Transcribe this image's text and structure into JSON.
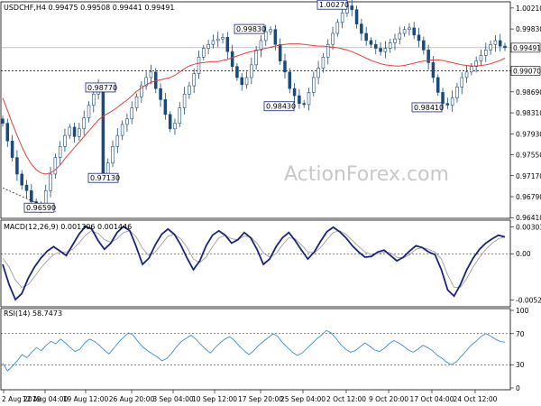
{
  "chart_data": {
    "type": "candlestick",
    "colors": {
      "candle": "#1a4a7a",
      "ma": "#e8403a",
      "macd": "#1a237e",
      "signal": "#a0a0a0",
      "rsi": "#3a8ddd",
      "level_box": "#1a237e"
    },
    "price_panel": {
      "header": "USDCHF,H4  0.99475 0.99508 0.99441 0.99491",
      "ylim": [
        0.9643,
        1.0029
      ],
      "y_ticks": [
        "1.00210",
        "0.99830",
        "0.99491",
        "0.99070",
        "0.98690",
        "0.98310",
        "0.97930",
        "0.97550",
        "0.97170",
        "0.96790",
        "0.96410"
      ],
      "levels": [
        {
          "label": "1.00270",
          "value": 1.0027
        },
        {
          "label": "0.99830",
          "value": 0.9983
        },
        {
          "label": "0.98770",
          "value": 0.9877
        },
        {
          "label": "0.98430",
          "value": 0.9843
        },
        {
          "label": "0.98410",
          "value": 0.9841
        },
        {
          "label": "0.97130",
          "value": 0.9713
        },
        {
          "label": "0.96590",
          "value": 0.9659
        }
      ],
      "current_price": {
        "label": "0.99491",
        "value": 0.99491
      },
      "support_level": {
        "label": "0.99070",
        "value": 0.9907
      },
      "close_series": [
        0.9812,
        0.978,
        0.975,
        0.972,
        0.97,
        0.969,
        0.967,
        0.966,
        0.9662,
        0.969,
        0.972,
        0.975,
        0.977,
        0.979,
        0.9805,
        0.9788,
        0.9802,
        0.9822,
        0.9845,
        0.9865,
        0.988,
        0.9715,
        0.974,
        0.977,
        0.979,
        0.981,
        0.982,
        0.984,
        0.986,
        0.988,
        0.9895,
        0.9905,
        0.9875,
        0.9855,
        0.9828,
        0.9802,
        0.9812,
        0.984,
        0.9865,
        0.988,
        0.9902,
        0.9932,
        0.9948,
        0.9955,
        0.9962,
        0.9965,
        0.9968,
        0.9942,
        0.9915,
        0.9895,
        0.9882,
        0.9895,
        0.9918,
        0.9945,
        0.9962,
        0.9978,
        0.9982,
        0.9955,
        0.9925,
        0.9905,
        0.9875,
        0.9862,
        0.9848,
        0.9846,
        0.9868,
        0.9895,
        0.9912,
        0.9932,
        0.9955,
        0.9975,
        0.9995,
        1.0012,
        1.0025,
        1.0018,
        0.9992,
        0.9975,
        0.9962,
        0.9955,
        0.9948,
        0.9942,
        0.9948,
        0.9958,
        0.9965,
        0.9975,
        0.9982,
        0.9985,
        0.9972,
        0.9962,
        0.9945,
        0.9922,
        0.9895,
        0.9868,
        0.9848,
        0.9845,
        0.9858,
        0.9878,
        0.9895,
        0.9905,
        0.9915,
        0.9925,
        0.9935,
        0.9945,
        0.9955,
        0.9962,
        0.9952,
        0.9949
      ],
      "ma_series": [
        0.9858,
        0.9835,
        0.9812,
        0.979,
        0.977,
        0.9752,
        0.9738,
        0.9728,
        0.9722,
        0.972,
        0.9722,
        0.9728,
        0.9736,
        0.9748,
        0.9758,
        0.9768,
        0.9778,
        0.9788,
        0.9798,
        0.9808,
        0.9818,
        0.9825,
        0.983,
        0.9835,
        0.9841,
        0.9848,
        0.9854,
        0.9862,
        0.987,
        0.9876,
        0.9882,
        0.9886,
        0.9889,
        0.9891,
        0.9893,
        0.9895,
        0.9899,
        0.9905,
        0.9911,
        0.9916,
        0.9919,
        0.9921,
        0.9922,
        0.9923,
        0.9924,
        0.9924,
        0.9926,
        0.9928,
        0.9931,
        0.9934,
        0.9937,
        0.994,
        0.9942,
        0.9944,
        0.9946,
        0.9948,
        0.995,
        0.9952,
        0.9954,
        0.9955,
        0.9956,
        0.9956,
        0.9956,
        0.9955,
        0.9954,
        0.9953,
        0.9952,
        0.9952,
        0.9951,
        0.995,
        0.9949,
        0.9947,
        0.9945,
        0.9942,
        0.9938,
        0.9934,
        0.993,
        0.9926,
        0.9923,
        0.992,
        0.9918,
        0.9917,
        0.9916,
        0.9916,
        0.9917,
        0.9919,
        0.9921,
        0.9923,
        0.9925,
        0.9926,
        0.9927,
        0.9927,
        0.9926,
        0.9924,
        0.9922,
        0.992,
        0.9918,
        0.9917,
        0.9916,
        0.9916,
        0.9917,
        0.9918,
        0.992,
        0.9923,
        0.9926,
        0.993
      ]
    },
    "macd_panel": {
      "header": "MACD(12,26,9) 0.001306 0.001446",
      "ylim": [
        -0.0058,
        0.0036
      ],
      "y_ticks": [
        "0.00303",
        "0.00",
        "-0.005236"
      ],
      "macd_series": [
        -0.0012,
        -0.0035,
        -0.0052,
        -0.0045,
        -0.0028,
        -0.0015,
        -0.0005,
        0.0003,
        0.0008,
        0.0003,
        -0.0002,
        0.001,
        0.0022,
        0.0031,
        0.0028,
        0.0015,
        0.0005,
        0.0012,
        0.0024,
        0.0031,
        0.0026,
        0.0008,
        -0.0012,
        -0.0005,
        0.001,
        0.0022,
        0.0028,
        0.0022,
        0.001,
        -0.0005,
        -0.0018,
        -0.0008,
        0.0009,
        0.0021,
        0.0026,
        0.0021,
        0.0012,
        0.0016,
        0.0024,
        0.0018,
        0.0005,
        -0.0012,
        -0.0006,
        0.0008,
        0.0018,
        0.0024,
        0.0015,
        0.0004,
        -0.0006,
        0.0002,
        0.0014,
        0.0025,
        0.003,
        0.0025,
        0.0018,
        0.0009,
        0.0002,
        -0.0004,
        -0.0003,
        0.0002,
        0.0004,
        -0.0002,
        -0.0008,
        -0.0004,
        0.0003,
        0.0009,
        0.0007,
        0.0002,
        -0.0001,
        -0.0018,
        -0.0041,
        -0.0048,
        -0.0035,
        -0.0018,
        -0.0005,
        0.0005,
        0.0012,
        0.0017,
        0.0021,
        0.0019
      ],
      "signal_series": [
        -0.0005,
        -0.0015,
        -0.003,
        -0.0038,
        -0.0035,
        -0.0026,
        -0.0016,
        -0.0008,
        -0.0001,
        0.0002,
        0.0002,
        0.0005,
        0.0012,
        0.0021,
        0.0026,
        0.0023,
        0.0016,
        0.0013,
        0.0017,
        0.0024,
        0.0026,
        0.0019,
        0.0006,
        -0.0002,
        0.0002,
        0.0011,
        0.002,
        0.0022,
        0.0017,
        0.0007,
        -0.0006,
        -0.001,
        -0.0004,
        0.0008,
        0.0018,
        0.0021,
        0.0017,
        0.0016,
        0.002,
        0.0019,
        0.0012,
        0.0001,
        -0.0004,
        0.0,
        0.001,
        0.0018,
        0.0017,
        0.001,
        0.0002,
        0.0001,
        0.0007,
        0.0016,
        0.0024,
        0.0026,
        0.0022,
        0.0015,
        0.0008,
        0.0002,
        -0.0001,
        0.0,
        0.0002,
        0.0001,
        -0.0004,
        -0.0005,
        -0.0001,
        0.0005,
        0.0007,
        0.0005,
        0.0002,
        -0.0006,
        -0.0024,
        -0.0038,
        -0.0038,
        -0.0028,
        -0.0015,
        -0.0004,
        0.0005,
        0.0012,
        0.0017,
        0.0019
      ]
    },
    "rsi_panel": {
      "header": "RSI(14) 58.7473",
      "ylim": [
        0,
        100
      ],
      "y_ticks": [
        "100",
        "70",
        "30",
        "0"
      ],
      "levels": [
        70,
        30
      ],
      "rsi_series": [
        32,
        22,
        28,
        35,
        43,
        39,
        46,
        52,
        48,
        55,
        60,
        57,
        63,
        58,
        52,
        47,
        50,
        58,
        63,
        60,
        55,
        49,
        44,
        51,
        59,
        65,
        71,
        68,
        60,
        53,
        48,
        44,
        40,
        35,
        38,
        45,
        53,
        60,
        64,
        68,
        63,
        56,
        50,
        45,
        52,
        58,
        63,
        66,
        61,
        54,
        48,
        43,
        48,
        55,
        60,
        65,
        70,
        66,
        58,
        52,
        46,
        42,
        45,
        51,
        57,
        63,
        68,
        74,
        71,
        64,
        56,
        50,
        46,
        48,
        53,
        58,
        54,
        49,
        47,
        51,
        57,
        61,
        58,
        54,
        49,
        46,
        50,
        55,
        52,
        48,
        42,
        38,
        33,
        30,
        34,
        41,
        48,
        55,
        60,
        66,
        70,
        67,
        63,
        60,
        59
      ]
    },
    "x_ticks": [
      "2 Aug 2019",
      "12 Aug 04:00",
      "19 Aug 12:00",
      "26 Aug 20:00",
      "3 Sep 04:00",
      "10 Sep 12:00",
      "17 Sep 20:00",
      "25 Sep 04:00",
      "2 Oct 12:00",
      "9 Oct 20:00",
      "17 Oct 04:00",
      "24 Oct 12:00"
    ],
    "watermark": "ActionForex.com"
  }
}
